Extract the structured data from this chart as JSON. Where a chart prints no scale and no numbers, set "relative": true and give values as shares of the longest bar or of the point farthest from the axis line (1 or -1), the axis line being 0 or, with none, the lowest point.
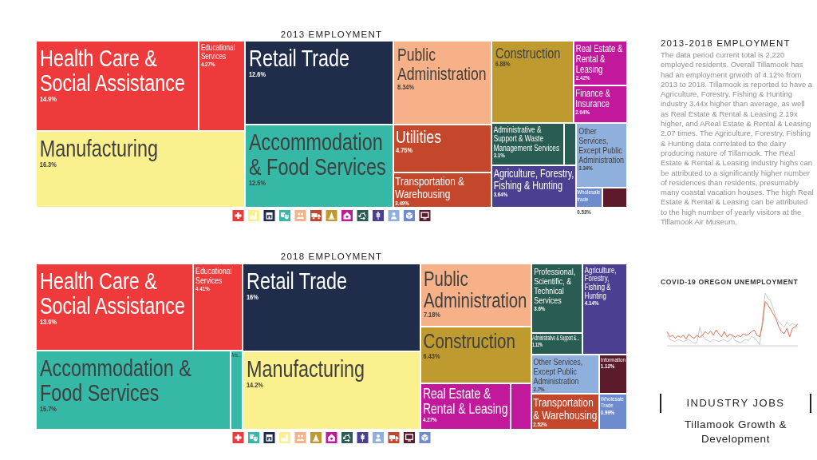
{
  "chart_data": [
    {
      "type": "other",
      "title": "2013 EMPLOYMENT",
      "categories": [
        "Health Care & Social Assistance",
        "Educational Services",
        "Manufacturing",
        "Retail Trade",
        "Accommodation & Food Services",
        "Public Administration",
        "Utilities",
        "Transportation & Warehousing",
        "Construction",
        "Real Estate & Rental & Leasing",
        "Finance & Insurance",
        "Administrative & Support & Waste Management Services",
        null,
        "Agriculture, Forestry, Fishing & Hunting",
        "Other Services, Except Public Administration",
        "Wholesale trade",
        null
      ],
      "values": [
        14.9,
        4.27,
        16.3,
        12.6,
        12.5,
        8.34,
        4.75,
        3.49,
        6.88,
        2.42,
        2.04,
        3.1,
        null,
        3.64,
        3.34,
        0.53,
        null
      ],
      "value_labels": [
        "14.9%",
        "4.27%",
        "16.3%",
        "12.6%",
        "12.5%",
        "8.34%",
        "4.75%",
        "3.49%",
        "6.88%",
        "2.42%",
        "2.04%",
        "3.1%",
        null,
        "3.64%",
        "3.34%",
        "0.53%",
        null
      ],
      "colors": [
        "#ee3a3a",
        "#ee3a3a",
        "#faf08e",
        "#1f2d4b",
        "#35b8a6",
        "#f7b188",
        "#c4472c",
        "#c4472c",
        "#bf9a2f",
        "#c2189b",
        "#c2189b",
        "#295c52",
        "#295c52",
        "#4b3f92",
        "#8fb0dc",
        "#6f8bd0",
        "#5b1b2b"
      ]
    },
    {
      "type": "other",
      "title": "2018 EMPLOYMENT",
      "categories": [
        "Health Care & Social Assistance",
        "Educational Services",
        "Accommodation & Food Services",
        "Arts...",
        "Retail Trade",
        "Manufacturing",
        "Public Administration",
        "Construction",
        "Real Estate & Rental & Leasing",
        null,
        "Professional, Scientific, & Technical Services",
        "Administrative & Support &...",
        "Agriculture, Forestry, Fishing & Hunting",
        "Other Services, Except Public Administration",
        "Transportation & Warehousing",
        "Information",
        "Wholesale Trade"
      ],
      "values": [
        13.9,
        4.41,
        15.7,
        null,
        16,
        14.2,
        7.18,
        6.43,
        4.27,
        null,
        3.6,
        1.12,
        4.14,
        2.7,
        2.52,
        1.12,
        0.99
      ],
      "value_labels": [
        "13.9%",
        "4.41%",
        "15.7%",
        null,
        "16%",
        "14.2%",
        "7.18%",
        "6.43%",
        "4.27%",
        null,
        "3.6%",
        "1.12%",
        "4.14%",
        "2.7%",
        "2.52%",
        "1.12%",
        "0.99%"
      ],
      "colors": [
        "#ee3a3a",
        "#ee3a3a",
        "#35b8a6",
        "#35b8a6",
        "#1f2d4b",
        "#faf08e",
        "#f7b188",
        "#bf9a2f",
        "#c2189b",
        "#c2189b",
        "#295c52",
        "#295c52",
        "#4b3f92",
        "#8fb0dc",
        "#c4472c",
        "#5b1b2b",
        "#6f8bd0"
      ]
    },
    {
      "type": "other",
      "title": "2013-2018 EMPLOYMENT",
      "annotations": [
        "The data period current total is 2,220 employed residents. Overall Tillamook has had an employment grwoth of 4.12% from 2013 to 2018. Tillamook is reported to have a Agriculture, Forestry, Fishing & Hunting industry 3.44x higher than average, as well as Real Estate & Rental & Leasing 2.19x higher, and AReal Estate & Rental & Leasing 2.07 times. The Agriculture, Forestry, Fishing & Hunting data correlated to the dairy producing nature of Tillamook. The Real Estate & Rental & Leasing industry highs can be attributed to a significantly higher number of residences than residents, presumably many coastal vacation houses. The high Real Estate & Rental & Leasing can be attributed to the high number of yearly visitors at the Tillamook Air Museum."
      ]
    },
    {
      "type": "line",
      "title": "COVID-19 OREGON UNEMPLOYMENT",
      "relative": true,
      "categories": [
        null,
        null,
        null,
        null,
        null,
        null,
        null,
        null,
        null,
        null,
        null,
        null,
        null,
        null,
        null,
        null,
        null,
        null,
        null,
        null,
        null,
        null,
        null,
        null,
        null,
        null,
        null,
        null,
        null,
        null,
        null,
        null,
        null,
        null,
        null,
        null,
        null,
        null,
        null,
        null,
        null,
        null,
        null,
        null,
        null,
        null,
        null,
        null,
        null
      ],
      "series": [
        {
          "color": "#c4c4c4",
          "values": [
            0.2,
            0.12,
            0.1,
            0.08,
            0.12,
            0.1,
            0.08,
            0.1,
            0.12,
            0.08,
            0.05,
            0.06,
            0.35,
            0.2,
            0.12,
            0.1,
            0.08,
            0.12,
            0.1,
            0.08,
            0.1,
            0.12,
            0.08,
            0.1,
            0.18,
            0.1,
            0.08,
            0.06,
            0.1,
            0.12,
            0.1,
            0.18,
            0.15,
            0.1,
            0.02,
            0.5,
            1,
            0.9,
            0.85,
            0.7,
            0.55,
            0.45,
            0.4,
            0.35,
            0.45,
            0.38,
            0.42,
            0.4,
            0.35
          ]
        },
        {
          "color": "#d9603b",
          "values": [
            0.27,
            0.17,
            0.2,
            0.14,
            0.19,
            0.16,
            0.2,
            0.13,
            0.22,
            0.17,
            0.14,
            0.2,
            0.16,
            0.2,
            0.27,
            0.22,
            0.28,
            0.2,
            0.3,
            0.23,
            0.17,
            0.27,
            0.17,
            0.22,
            0.2,
            0.16,
            0.2,
            0.17,
            0.23,
            0.2,
            0.22,
            0.27,
            0.3,
            0.2,
            0.17,
            0.39,
            0.84,
            0.78,
            0.69,
            0.6,
            0.51,
            0.36,
            0.27,
            0.23,
            0.33,
            0.17,
            0.33,
            0.36,
            0.42
          ]
        }
      ]
    },
    {
      "type": "other",
      "title": "INDUSTRY JOBS",
      "subtitle": "Tillamook Growth & Development"
    }
  ]
}
